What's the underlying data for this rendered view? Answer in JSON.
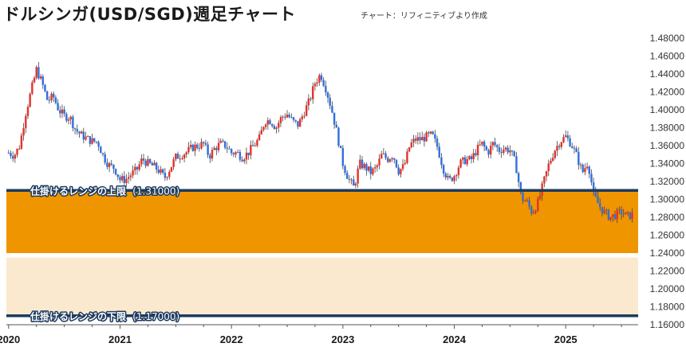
{
  "title": "ドルシンガ(USD/SGD)週足チャート",
  "credit": "チャート：リフィニティブより作成",
  "colors": {
    "up": "#e8302a",
    "down": "#2f6fe0",
    "wick": "#444444",
    "upper_zone": "#ef9500",
    "lower_zone": "#fbe9cf",
    "range_line": "#1c3a5e"
  },
  "chart_data": {
    "type": "candlestick",
    "x_unit": "year",
    "xlim": [
      2019.98,
      2025.65
    ],
    "ylim": [
      1.16,
      1.48
    ],
    "yticks": [
      "1.48000",
      "1.46000",
      "1.44000",
      "1.42000",
      "1.40000",
      "1.38000",
      "1.36000",
      "1.34000",
      "1.32000",
      "1.30000",
      "1.28000",
      "1.26000",
      "1.24000",
      "1.22000",
      "1.20000",
      "1.18000",
      "1.16000"
    ],
    "xticks": [
      "2020",
      "2021",
      "2022",
      "2023",
      "2024",
      "2025"
    ],
    "range_upper": {
      "label": "仕掛けるレンジの上限",
      "value_label": "(1.31000)",
      "value": 1.31
    },
    "range_lower": {
      "label": "仕掛けるレンジの下限",
      "value_label": "(1.17000)",
      "value": 1.17
    },
    "upper_zone": [
      1.24,
      1.31
    ],
    "lower_zone": [
      1.17,
      1.235
    ],
    "close_path": [
      [
        2020.0,
        1.352
      ],
      [
        2020.05,
        1.349
      ],
      [
        2020.1,
        1.36
      ],
      [
        2020.15,
        1.395
      ],
      [
        2020.2,
        1.42
      ],
      [
        2020.25,
        1.445
      ],
      [
        2020.3,
        1.43
      ],
      [
        2020.35,
        1.41
      ],
      [
        2020.4,
        1.415
      ],
      [
        2020.45,
        1.4
      ],
      [
        2020.5,
        1.393
      ],
      [
        2020.55,
        1.392
      ],
      [
        2020.6,
        1.378
      ],
      [
        2020.65,
        1.372
      ],
      [
        2020.7,
        1.368
      ],
      [
        2020.75,
        1.365
      ],
      [
        2020.8,
        1.364
      ],
      [
        2020.85,
        1.348
      ],
      [
        2020.9,
        1.338
      ],
      [
        2020.95,
        1.335
      ],
      [
        2021.0,
        1.322
      ],
      [
        2021.05,
        1.322
      ],
      [
        2021.1,
        1.328
      ],
      [
        2021.15,
        1.333
      ],
      [
        2021.2,
        1.345
      ],
      [
        2021.25,
        1.34
      ],
      [
        2021.3,
        1.337
      ],
      [
        2021.35,
        1.332
      ],
      [
        2021.4,
        1.324
      ],
      [
        2021.45,
        1.335
      ],
      [
        2021.5,
        1.347
      ],
      [
        2021.55,
        1.35
      ],
      [
        2021.6,
        1.353
      ],
      [
        2021.65,
        1.358
      ],
      [
        2021.7,
        1.36
      ],
      [
        2021.75,
        1.362
      ],
      [
        2021.8,
        1.348
      ],
      [
        2021.85,
        1.357
      ],
      [
        2021.9,
        1.362
      ],
      [
        2021.95,
        1.36
      ],
      [
        2022.0,
        1.352
      ],
      [
        2022.05,
        1.352
      ],
      [
        2022.1,
        1.347
      ],
      [
        2022.15,
        1.352
      ],
      [
        2022.2,
        1.36
      ],
      [
        2022.25,
        1.368
      ],
      [
        2022.3,
        1.388
      ],
      [
        2022.35,
        1.388
      ],
      [
        2022.4,
        1.38
      ],
      [
        2022.45,
        1.392
      ],
      [
        2022.5,
        1.395
      ],
      [
        2022.55,
        1.387
      ],
      [
        2022.6,
        1.383
      ],
      [
        2022.65,
        1.397
      ],
      [
        2022.7,
        1.41
      ],
      [
        2022.75,
        1.43
      ],
      [
        2022.8,
        1.44
      ],
      [
        2022.85,
        1.423
      ],
      [
        2022.9,
        1.4
      ],
      [
        2022.95,
        1.372
      ],
      [
        2023.0,
        1.34
      ],
      [
        2023.05,
        1.323
      ],
      [
        2023.1,
        1.313
      ],
      [
        2023.15,
        1.34
      ],
      [
        2023.2,
        1.336
      ],
      [
        2023.25,
        1.33
      ],
      [
        2023.3,
        1.335
      ],
      [
        2023.35,
        1.35
      ],
      [
        2023.4,
        1.345
      ],
      [
        2023.45,
        1.35
      ],
      [
        2023.5,
        1.332
      ],
      [
        2023.55,
        1.337
      ],
      [
        2023.6,
        1.36
      ],
      [
        2023.65,
        1.367
      ],
      [
        2023.7,
        1.367
      ],
      [
        2023.75,
        1.37
      ],
      [
        2023.8,
        1.372
      ],
      [
        2023.85,
        1.358
      ],
      [
        2023.9,
        1.335
      ],
      [
        2023.95,
        1.32
      ],
      [
        2024.0,
        1.327
      ],
      [
        2024.05,
        1.34
      ],
      [
        2024.1,
        1.344
      ],
      [
        2024.15,
        1.344
      ],
      [
        2024.2,
        1.355
      ],
      [
        2024.25,
        1.362
      ],
      [
        2024.3,
        1.352
      ],
      [
        2024.35,
        1.363
      ],
      [
        2024.4,
        1.355
      ],
      [
        2024.45,
        1.357
      ],
      [
        2024.5,
        1.355
      ],
      [
        2024.55,
        1.34
      ],
      [
        2024.6,
        1.302
      ],
      [
        2024.65,
        1.297
      ],
      [
        2024.7,
        1.285
      ],
      [
        2024.75,
        1.296
      ],
      [
        2024.8,
        1.318
      ],
      [
        2024.85,
        1.34
      ],
      [
        2024.9,
        1.355
      ],
      [
        2024.95,
        1.365
      ],
      [
        2025.0,
        1.37
      ],
      [
        2025.05,
        1.362
      ],
      [
        2025.1,
        1.348
      ],
      [
        2025.15,
        1.33
      ],
      [
        2025.2,
        1.342
      ],
      [
        2025.25,
        1.305
      ],
      [
        2025.3,
        1.293
      ],
      [
        2025.35,
        1.285
      ],
      [
        2025.4,
        1.28
      ],
      [
        2025.45,
        1.283
      ],
      [
        2025.5,
        1.286
      ],
      [
        2025.55,
        1.281
      ],
      [
        2025.6,
        1.283
      ]
    ]
  }
}
